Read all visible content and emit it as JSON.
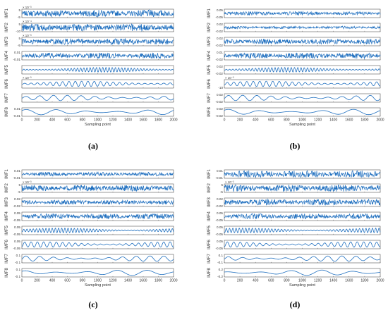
{
  "chart_data": [
    {
      "type": "line",
      "panel": "a",
      "xlabel": "Sampling point",
      "xlim": [
        0,
        2000
      ],
      "xticks": [
        "0",
        "200",
        "400",
        "600",
        "800",
        "1000",
        "1200",
        "1400",
        "1600",
        "1800",
        "2000"
      ],
      "rows": [
        {
          "name": "IMF1",
          "ylim": [
            -5,
            5
          ],
          "yticks": [
            "5",
            "-5"
          ],
          "exponent": "× 10⁻³",
          "signal": {
            "kind": "noise",
            "freq": 210,
            "amp": 0.9
          }
        },
        {
          "name": "IMF2",
          "ylim": [
            -10,
            10
          ],
          "yticks": [
            "5",
            "-10"
          ],
          "exponent": "× 10⁻⁴",
          "signal": {
            "kind": "noise",
            "freq": 150,
            "amp": 0.95
          }
        },
        {
          "name": "IMF3",
          "ylim": [
            -5,
            5
          ],
          "yticks": [
            "5",
            "-5"
          ],
          "exponent": "× 10⁻³",
          "signal": {
            "kind": "noise",
            "freq": 110,
            "amp": 0.8
          }
        },
        {
          "name": "IMF4",
          "ylim": [
            -0.01,
            0.01
          ],
          "yticks": [
            "0.01",
            "-0.01"
          ],
          "exponent": "",
          "signal": {
            "kind": "noise",
            "freq": 75,
            "amp": 0.7
          }
        },
        {
          "name": "IMF5",
          "ylim": [
            -5,
            5
          ],
          "yticks": [
            "",
            ""
          ],
          "exponent": "",
          "signal": {
            "kind": "wave",
            "freq": 48,
            "amp": 0.6
          }
        },
        {
          "name": "IMF6",
          "ylim": [
            -1,
            1
          ],
          "yticks": [
            "",
            ""
          ],
          "exponent": "× 10⁻³",
          "signal": {
            "kind": "wave",
            "freq": 24,
            "amp": 0.7
          }
        },
        {
          "name": "IMF7",
          "ylim": [
            -0.02,
            0.02
          ],
          "yticks": [
            "",
            ""
          ],
          "exponent": "",
          "signal": {
            "kind": "wave",
            "freq": 11,
            "amp": 0.7
          }
        },
        {
          "name": "IMF8",
          "ylim": [
            -0.01,
            0.01
          ],
          "yticks": [
            "0.01",
            "-0.01"
          ],
          "exponent": "",
          "signal": {
            "kind": "wave",
            "freq": 5,
            "amp": 0.7
          }
        }
      ]
    },
    {
      "type": "line",
      "panel": "b",
      "xlabel": "Sampling point",
      "xlim": [
        0,
        2000
      ],
      "xticks": [
        "0",
        "200",
        "400",
        "600",
        "800",
        "1000",
        "1200",
        "1400",
        "1600",
        "1800",
        "2000"
      ],
      "rows": [
        {
          "name": "IMF1",
          "ylim": [
            -0.05,
            0.05
          ],
          "yticks": [
            "0.05",
            "-0.05"
          ],
          "exponent": "",
          "signal": {
            "kind": "noise",
            "freq": 210,
            "amp": 0.5
          }
        },
        {
          "name": "IMF2",
          "ylim": [
            -0.02,
            0.02
          ],
          "yticks": [
            "0.02",
            "-0.02"
          ],
          "exponent": "",
          "signal": {
            "kind": "noise",
            "freq": 150,
            "amp": 0.35
          }
        },
        {
          "name": "IMF3",
          "ylim": [
            -0.02,
            0.02
          ],
          "yticks": [
            "0.02",
            "-0.02"
          ],
          "exponent": "",
          "signal": {
            "kind": "noise",
            "freq": 110,
            "amp": 0.7
          }
        },
        {
          "name": "IMF4",
          "ylim": [
            -0.02,
            0.01
          ],
          "yticks": [
            "0.01",
            "-0.02"
          ],
          "exponent": "",
          "signal": {
            "kind": "noise",
            "freq": 75,
            "amp": 0.75
          }
        },
        {
          "name": "IMF5",
          "ylim": [
            -0.02,
            0.02
          ],
          "yticks": [
            "0.02",
            "-0.02"
          ],
          "exponent": "",
          "signal": {
            "kind": "wave",
            "freq": 48,
            "amp": 0.6
          }
        },
        {
          "name": "IMF6",
          "ylim": [
            -10,
            10
          ],
          "yticks": [
            "",
            "-10"
          ],
          "exponent": "× 10⁻³",
          "signal": {
            "kind": "wave",
            "freq": 24,
            "amp": 0.7
          }
        },
        {
          "name": "IMF7",
          "ylim": [
            -0.02,
            0.02
          ],
          "yticks": [
            "0.02",
            "-0.02"
          ],
          "exponent": "",
          "signal": {
            "kind": "wave",
            "freq": 11,
            "amp": 0.7
          }
        },
        {
          "name": "IMF8",
          "ylim": [
            -0.02,
            0.02
          ],
          "yticks": [
            "0.02",
            "-0.02"
          ],
          "exponent": "",
          "signal": {
            "kind": "wave",
            "freq": 5,
            "amp": 0.7
          }
        }
      ]
    },
    {
      "type": "line",
      "panel": "c",
      "xlabel": "Sampling point",
      "xlim": [
        0,
        2000
      ],
      "xticks": [
        "0",
        "200",
        "400",
        "600",
        "800",
        "1000",
        "1200",
        "1400",
        "1600",
        "1800",
        "2000"
      ],
      "rows": [
        {
          "name": "IMF1",
          "ylim": [
            -0.01,
            0.01
          ],
          "yticks": [
            "0.01",
            "-0.01"
          ],
          "exponent": "",
          "signal": {
            "kind": "noise",
            "freq": 210,
            "amp": 0.5
          }
        },
        {
          "name": "IMF2",
          "ylim": [
            -5,
            5
          ],
          "yticks": [
            "5",
            "-5"
          ],
          "exponent": "× 10⁻³",
          "signal": {
            "kind": "noise",
            "freq": 150,
            "amp": 0.8
          }
        },
        {
          "name": "IMF3",
          "ylim": [
            -0.02,
            0.02
          ],
          "yticks": [
            "0.02",
            "-0.02"
          ],
          "exponent": "",
          "signal": {
            "kind": "noise",
            "freq": 110,
            "amp": 0.6
          }
        },
        {
          "name": "IMF4",
          "ylim": [
            -0.05,
            0.05
          ],
          "yticks": [
            "0.05",
            "-0.05"
          ],
          "exponent": "",
          "signal": {
            "kind": "noise",
            "freq": 75,
            "amp": 0.7
          }
        },
        {
          "name": "IMF5",
          "ylim": [
            -0.05,
            0.05
          ],
          "yticks": [
            "0.05",
            "-0.05"
          ],
          "exponent": "",
          "signal": {
            "kind": "wave",
            "freq": 48,
            "amp": 0.6
          }
        },
        {
          "name": "IMF6",
          "ylim": [
            -0.05,
            0.05
          ],
          "yticks": [
            "0.05",
            "-0.05"
          ],
          "exponent": "",
          "signal": {
            "kind": "wave",
            "freq": 24,
            "amp": 0.7
          }
        },
        {
          "name": "IMF7",
          "ylim": [
            -0.1,
            0.1
          ],
          "yticks": [
            "0.1",
            "-0.1"
          ],
          "exponent": "",
          "signal": {
            "kind": "wave",
            "freq": 11,
            "amp": 0.7
          }
        },
        {
          "name": "IMF8",
          "ylim": [
            -0.1,
            0.1
          ],
          "yticks": [
            "0.1",
            "-0.1"
          ],
          "exponent": "",
          "signal": {
            "kind": "wave",
            "freq": 5,
            "amp": 0.7
          }
        }
      ]
    },
    {
      "type": "line",
      "panel": "d",
      "xlabel": "Sampling point",
      "xlim": [
        0,
        2000
      ],
      "xticks": [
        "0",
        "200",
        "400",
        "600",
        "800",
        "1000",
        "1200",
        "1400",
        "1600",
        "1800",
        "2000"
      ],
      "rows": [
        {
          "name": "IMF1",
          "ylim": [
            -0.01,
            0.01
          ],
          "yticks": [
            "0.01",
            "-0.01"
          ],
          "exponent": "",
          "signal": {
            "kind": "noise",
            "freq": 210,
            "amp": 0.95
          }
        },
        {
          "name": "IMF2",
          "ylim": [
            -5,
            5
          ],
          "yticks": [
            "5",
            "-5"
          ],
          "exponent": "× 10⁻³",
          "signal": {
            "kind": "noise",
            "freq": 150,
            "amp": 0.9
          }
        },
        {
          "name": "IMF3",
          "ylim": [
            -0.02,
            0.02
          ],
          "yticks": [
            "0.02",
            "-0.02"
          ],
          "exponent": "",
          "signal": {
            "kind": "noise",
            "freq": 110,
            "amp": 0.8
          }
        },
        {
          "name": "IMF4",
          "ylim": [
            -0.05,
            0.05
          ],
          "yticks": [
            "0.05",
            "-0.05"
          ],
          "exponent": "",
          "signal": {
            "kind": "noise",
            "freq": 75,
            "amp": 0.7
          }
        },
        {
          "name": "IMF5",
          "ylim": [
            -0.05,
            0.05
          ],
          "yticks": [
            "0.05",
            "-0.05"
          ],
          "exponent": "",
          "signal": {
            "kind": "wave",
            "freq": 48,
            "amp": 0.6
          }
        },
        {
          "name": "IMF6",
          "ylim": [
            -0.05,
            0.05
          ],
          "yticks": [
            "0.05",
            "-0.05"
          ],
          "exponent": "",
          "signal": {
            "kind": "wave",
            "freq": 24,
            "amp": 0.7
          }
        },
        {
          "name": "IMF7",
          "ylim": [
            -0.1,
            0.1
          ],
          "yticks": [
            "0.1",
            "-0.1"
          ],
          "exponent": "",
          "signal": {
            "kind": "wave",
            "freq": 11,
            "amp": 0.7
          }
        },
        {
          "name": "IMF8",
          "ylim": [
            -0.2,
            0.2
          ],
          "yticks": [
            "0.2",
            "-0.2"
          ],
          "exponent": "",
          "signal": {
            "kind": "wave",
            "freq": 5,
            "amp": 0.7
          }
        }
      ]
    }
  ],
  "captions": {
    "a": "(a)",
    "b": "(b)",
    "c": "(c)",
    "d": "(d)"
  },
  "colors": {
    "line": "#1f6fbf",
    "axis": "#555555"
  }
}
